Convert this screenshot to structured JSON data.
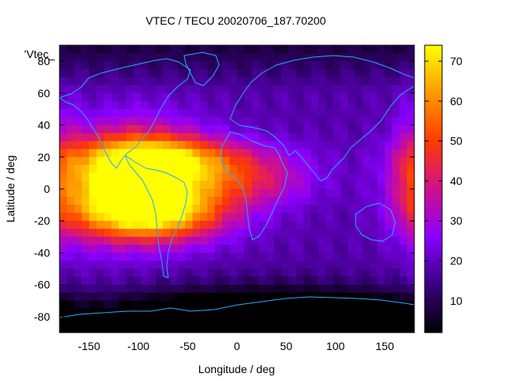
{
  "chart_data": {
    "type": "heatmap",
    "title": "VTEC / TECU 20020706_187.70200",
    "xlabel": "Longitude / deg",
    "ylabel": "Latitude / deg",
    "series_label": "'Vtec_",
    "xlim": [
      -180,
      180
    ],
    "ylim": [
      -90,
      90
    ],
    "xticks": [
      -150,
      -100,
      -50,
      0,
      50,
      100,
      150
    ],
    "yticks": [
      -80,
      -60,
      -40,
      -20,
      0,
      20,
      40,
      60,
      80
    ],
    "colorbar": {
      "range": [
        2,
        74
      ],
      "ticks": [
        10,
        20,
        30,
        40,
        50,
        60,
        70
      ],
      "palette": [
        "#000000",
        "#3a0080",
        "#8a00ff",
        "#d0108c",
        "#ff3b00",
        "#ff9a00",
        "#ffff00"
      ]
    },
    "grid_resolution_deg": {
      "lon": 7.5,
      "lat": 5
    },
    "background_vtec": 18,
    "features": [
      {
        "name": "equatorial-anomaly-americas",
        "lon": -95,
        "lat": 5,
        "peak_vtec": 70,
        "width_lon": 45,
        "width_lat": 22
      },
      {
        "name": "anomaly-south-crest",
        "lon": -80,
        "lat": -15,
        "peak_vtec": 54,
        "width_lon": 55,
        "width_lat": 12
      },
      {
        "name": "anomaly-north-crest",
        "lon": -60,
        "lat": 18,
        "peak_vtec": 48,
        "width_lon": 70,
        "width_lat": 10
      },
      {
        "name": "eastern-pacific-extension",
        "lon": -150,
        "lat": 0,
        "peak_vtec": 35,
        "width_lon": 35,
        "width_lat": 22
      },
      {
        "name": "atlantic-tongue",
        "lon": 10,
        "lat": 3,
        "peak_vtec": 36,
        "width_lon": 45,
        "width_lat": 10
      },
      {
        "name": "dateline-east-edge",
        "lon": 180,
        "lat": 10,
        "peak_vtec": 30,
        "width_lon": 15,
        "width_lat": 30
      },
      {
        "name": "southern-high-latitude-low",
        "lon": 40,
        "lat": -85,
        "peak_vtec": -16,
        "width_lon": 120,
        "width_lat": 15
      }
    ]
  }
}
